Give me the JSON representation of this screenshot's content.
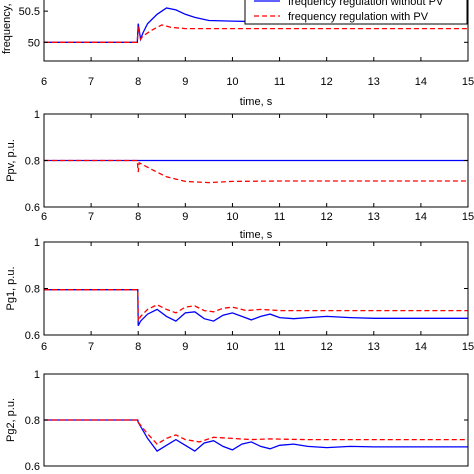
{
  "chart_data": [
    {
      "type": "line",
      "xlabel": "time, s",
      "ylabel": "frequency, Hz",
      "xlim": [
        6,
        15
      ],
      "ylim": [
        49.7,
        51
      ],
      "xticks": [
        "6",
        "7",
        "8",
        "9",
        "10",
        "11",
        "12",
        "13",
        "14",
        "15"
      ],
      "yticks": [
        "50",
        "50.5"
      ],
      "ytick_values": [
        50,
        50.5
      ],
      "legend_position": "top-right",
      "series": [
        {
          "name": "frequency regulation without PV",
          "color": "#0000ff",
          "style": "solid",
          "x": [
            6,
            7,
            7.98,
            8.0,
            8.05,
            8.1,
            8.2,
            8.4,
            8.6,
            8.8,
            9.0,
            9.2,
            9.5,
            10,
            10.6,
            10.7,
            11,
            12,
            13,
            14,
            15
          ],
          "y": [
            50.0,
            50.0,
            50.0,
            50.3,
            50.05,
            50.15,
            50.3,
            50.45,
            50.55,
            50.52,
            50.45,
            50.4,
            50.35,
            50.34,
            50.33,
            50.3,
            50.3,
            50.3,
            50.3,
            50.3,
            50.3
          ]
        },
        {
          "name": "frequency regulation with PV",
          "color": "#ff0000",
          "style": "dashed",
          "x": [
            6,
            7,
            7.98,
            8.0,
            8.05,
            8.1,
            8.3,
            8.5,
            8.7,
            9.0,
            9.5,
            10,
            11,
            12,
            13,
            14,
            15
          ],
          "y": [
            50.0,
            50.0,
            50.0,
            50.25,
            50.05,
            50.1,
            50.2,
            50.28,
            50.24,
            50.22,
            50.22,
            50.22,
            50.22,
            50.22,
            50.22,
            50.22,
            50.22
          ]
        }
      ]
    },
    {
      "type": "line",
      "xlabel": "time, s",
      "ylabel": "Ppv, p.u.",
      "xlim": [
        6,
        15
      ],
      "ylim": [
        0.6,
        1
      ],
      "xticks": [
        "6",
        "7",
        "8",
        "9",
        "10",
        "11",
        "12",
        "13",
        "14",
        "15"
      ],
      "yticks": [
        "0.6",
        "0.8",
        "1"
      ],
      "ytick_values": [
        0.6,
        0.8,
        1
      ],
      "series": [
        {
          "color": "#0000ff",
          "style": "solid",
          "x": [
            6,
            8,
            10,
            12,
            15
          ],
          "y": [
            0.8,
            0.8,
            0.8,
            0.8,
            0.8
          ]
        },
        {
          "color": "#ff0000",
          "style": "dashed",
          "x": [
            6,
            7.98,
            8.0,
            8.02,
            8.3,
            8.6,
            9.0,
            9.5,
            10,
            11,
            12,
            13,
            14,
            15
          ],
          "y": [
            0.8,
            0.8,
            0.75,
            0.79,
            0.76,
            0.73,
            0.71,
            0.705,
            0.71,
            0.712,
            0.712,
            0.712,
            0.712,
            0.712
          ]
        }
      ]
    },
    {
      "type": "line",
      "xlabel": "time, s",
      "ylabel": "Pg1, p.u.",
      "xlim": [
        6,
        15
      ],
      "ylim": [
        0.6,
        1
      ],
      "xticks": [
        "6",
        "7",
        "8",
        "9",
        "10",
        "11",
        "12",
        "13",
        "14",
        "15"
      ],
      "yticks": [
        "0.6",
        "0.8",
        "1"
      ],
      "ytick_values": [
        0.6,
        0.8,
        1
      ],
      "series": [
        {
          "color": "#0000ff",
          "style": "solid",
          "x": [
            6,
            7,
            7.99,
            8.0,
            8.05,
            8.2,
            8.4,
            8.6,
            8.8,
            9.0,
            9.2,
            9.4,
            9.6,
            9.8,
            10.0,
            10.2,
            10.4,
            10.6,
            10.8,
            11.0,
            11.3,
            11.6,
            12,
            12.5,
            13,
            14,
            15
          ],
          "y": [
            0.795,
            0.795,
            0.795,
            0.64,
            0.66,
            0.69,
            0.71,
            0.68,
            0.66,
            0.695,
            0.7,
            0.67,
            0.66,
            0.685,
            0.695,
            0.68,
            0.665,
            0.68,
            0.69,
            0.675,
            0.67,
            0.675,
            0.68,
            0.675,
            0.672,
            0.672,
            0.672
          ]
        },
        {
          "color": "#ff0000",
          "style": "dashed",
          "x": [
            6,
            7,
            7.99,
            8.0,
            8.05,
            8.2,
            8.4,
            8.6,
            8.8,
            9.0,
            9.2,
            9.4,
            9.6,
            9.8,
            10.0,
            10.3,
            10.6,
            11.0,
            11.5,
            12,
            13,
            14,
            15
          ],
          "y": [
            0.795,
            0.795,
            0.795,
            0.66,
            0.68,
            0.71,
            0.73,
            0.71,
            0.695,
            0.72,
            0.725,
            0.705,
            0.7,
            0.715,
            0.72,
            0.705,
            0.71,
            0.705,
            0.705,
            0.705,
            0.705,
            0.705,
            0.705
          ]
        }
      ]
    },
    {
      "type": "line",
      "xlabel": "",
      "ylabel": "Pg2, p.u.",
      "xlim": [
        6,
        15
      ],
      "ylim": [
        0.6,
        1
      ],
      "xticks": [],
      "yticks": [
        "0.6",
        "0.8",
        "1"
      ],
      "ytick_values": [
        0.6,
        0.8,
        1
      ],
      "series": [
        {
          "color": "#0000ff",
          "style": "solid",
          "x": [
            6,
            7,
            7.99,
            8.0,
            8.2,
            8.4,
            8.6,
            8.8,
            9.0,
            9.2,
            9.4,
            9.6,
            9.8,
            10.0,
            10.2,
            10.4,
            10.6,
            10.8,
            11.0,
            11.3,
            11.6,
            12,
            12.5,
            13,
            14,
            15
          ],
          "y": [
            0.8,
            0.8,
            0.8,
            0.79,
            0.72,
            0.665,
            0.69,
            0.715,
            0.69,
            0.665,
            0.7,
            0.71,
            0.685,
            0.67,
            0.695,
            0.705,
            0.685,
            0.675,
            0.69,
            0.695,
            0.685,
            0.68,
            0.685,
            0.683,
            0.683,
            0.683
          ]
        },
        {
          "color": "#ff0000",
          "style": "dashed",
          "x": [
            6,
            7,
            7.99,
            8.0,
            8.2,
            8.4,
            8.6,
            8.8,
            9.0,
            9.3,
            9.6,
            10.0,
            10.4,
            10.8,
            11.2,
            11.6,
            12,
            13,
            14,
            15
          ],
          "y": [
            0.8,
            0.8,
            0.8,
            0.79,
            0.74,
            0.695,
            0.72,
            0.735,
            0.715,
            0.705,
            0.725,
            0.72,
            0.715,
            0.718,
            0.716,
            0.715,
            0.715,
            0.715,
            0.715,
            0.715
          ]
        }
      ]
    }
  ]
}
